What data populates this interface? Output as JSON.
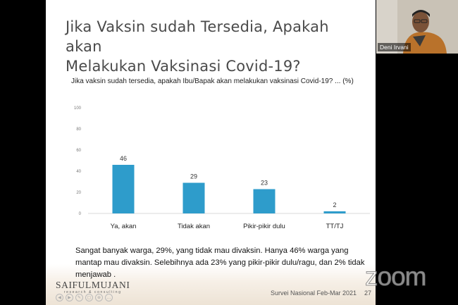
{
  "slide": {
    "title_line1": "Jika Vaksin sudah Tersedia, Apakah akan",
    "title_line2": "Melakukan Vaksinasi Covid-19?",
    "question": "Jika vaksin sudah tersedia, apakah Ibu/Bapak akan melakukan vaksinasi Covid-19? ... (%)",
    "note": "Sangat banyak warga, 29%, yang tidak mau divaksin. Hanya 46% warga yang mantap mau divaksin. Selebihnya ada 23% yang pikir-pikir dulu/ragu, dan 2% tidak menjawab .",
    "logo_main": "SAIFULMUJANI",
    "logo_sub": "research & consulting",
    "footer_survey": "Survei Nasional Feb-Mar 2021",
    "footer_page": "27"
  },
  "webcam": {
    "participant_name": "Deni Irvani"
  },
  "zoom_watermark": "zoom",
  "toolbar": [
    "◀",
    "▶",
    "✎",
    "▢",
    "⊕",
    "…"
  ],
  "chart_data": {
    "type": "bar",
    "categories": [
      "Ya, akan",
      "Tidak akan",
      "Pikir-pikir dulu",
      "TT/TJ"
    ],
    "values": [
      46,
      29,
      23,
      2
    ],
    "ylim": [
      0,
      100
    ],
    "yticks": [
      0,
      20,
      40,
      60,
      80,
      100
    ],
    "bar_color": "#2e9ccb",
    "grid": false
  }
}
